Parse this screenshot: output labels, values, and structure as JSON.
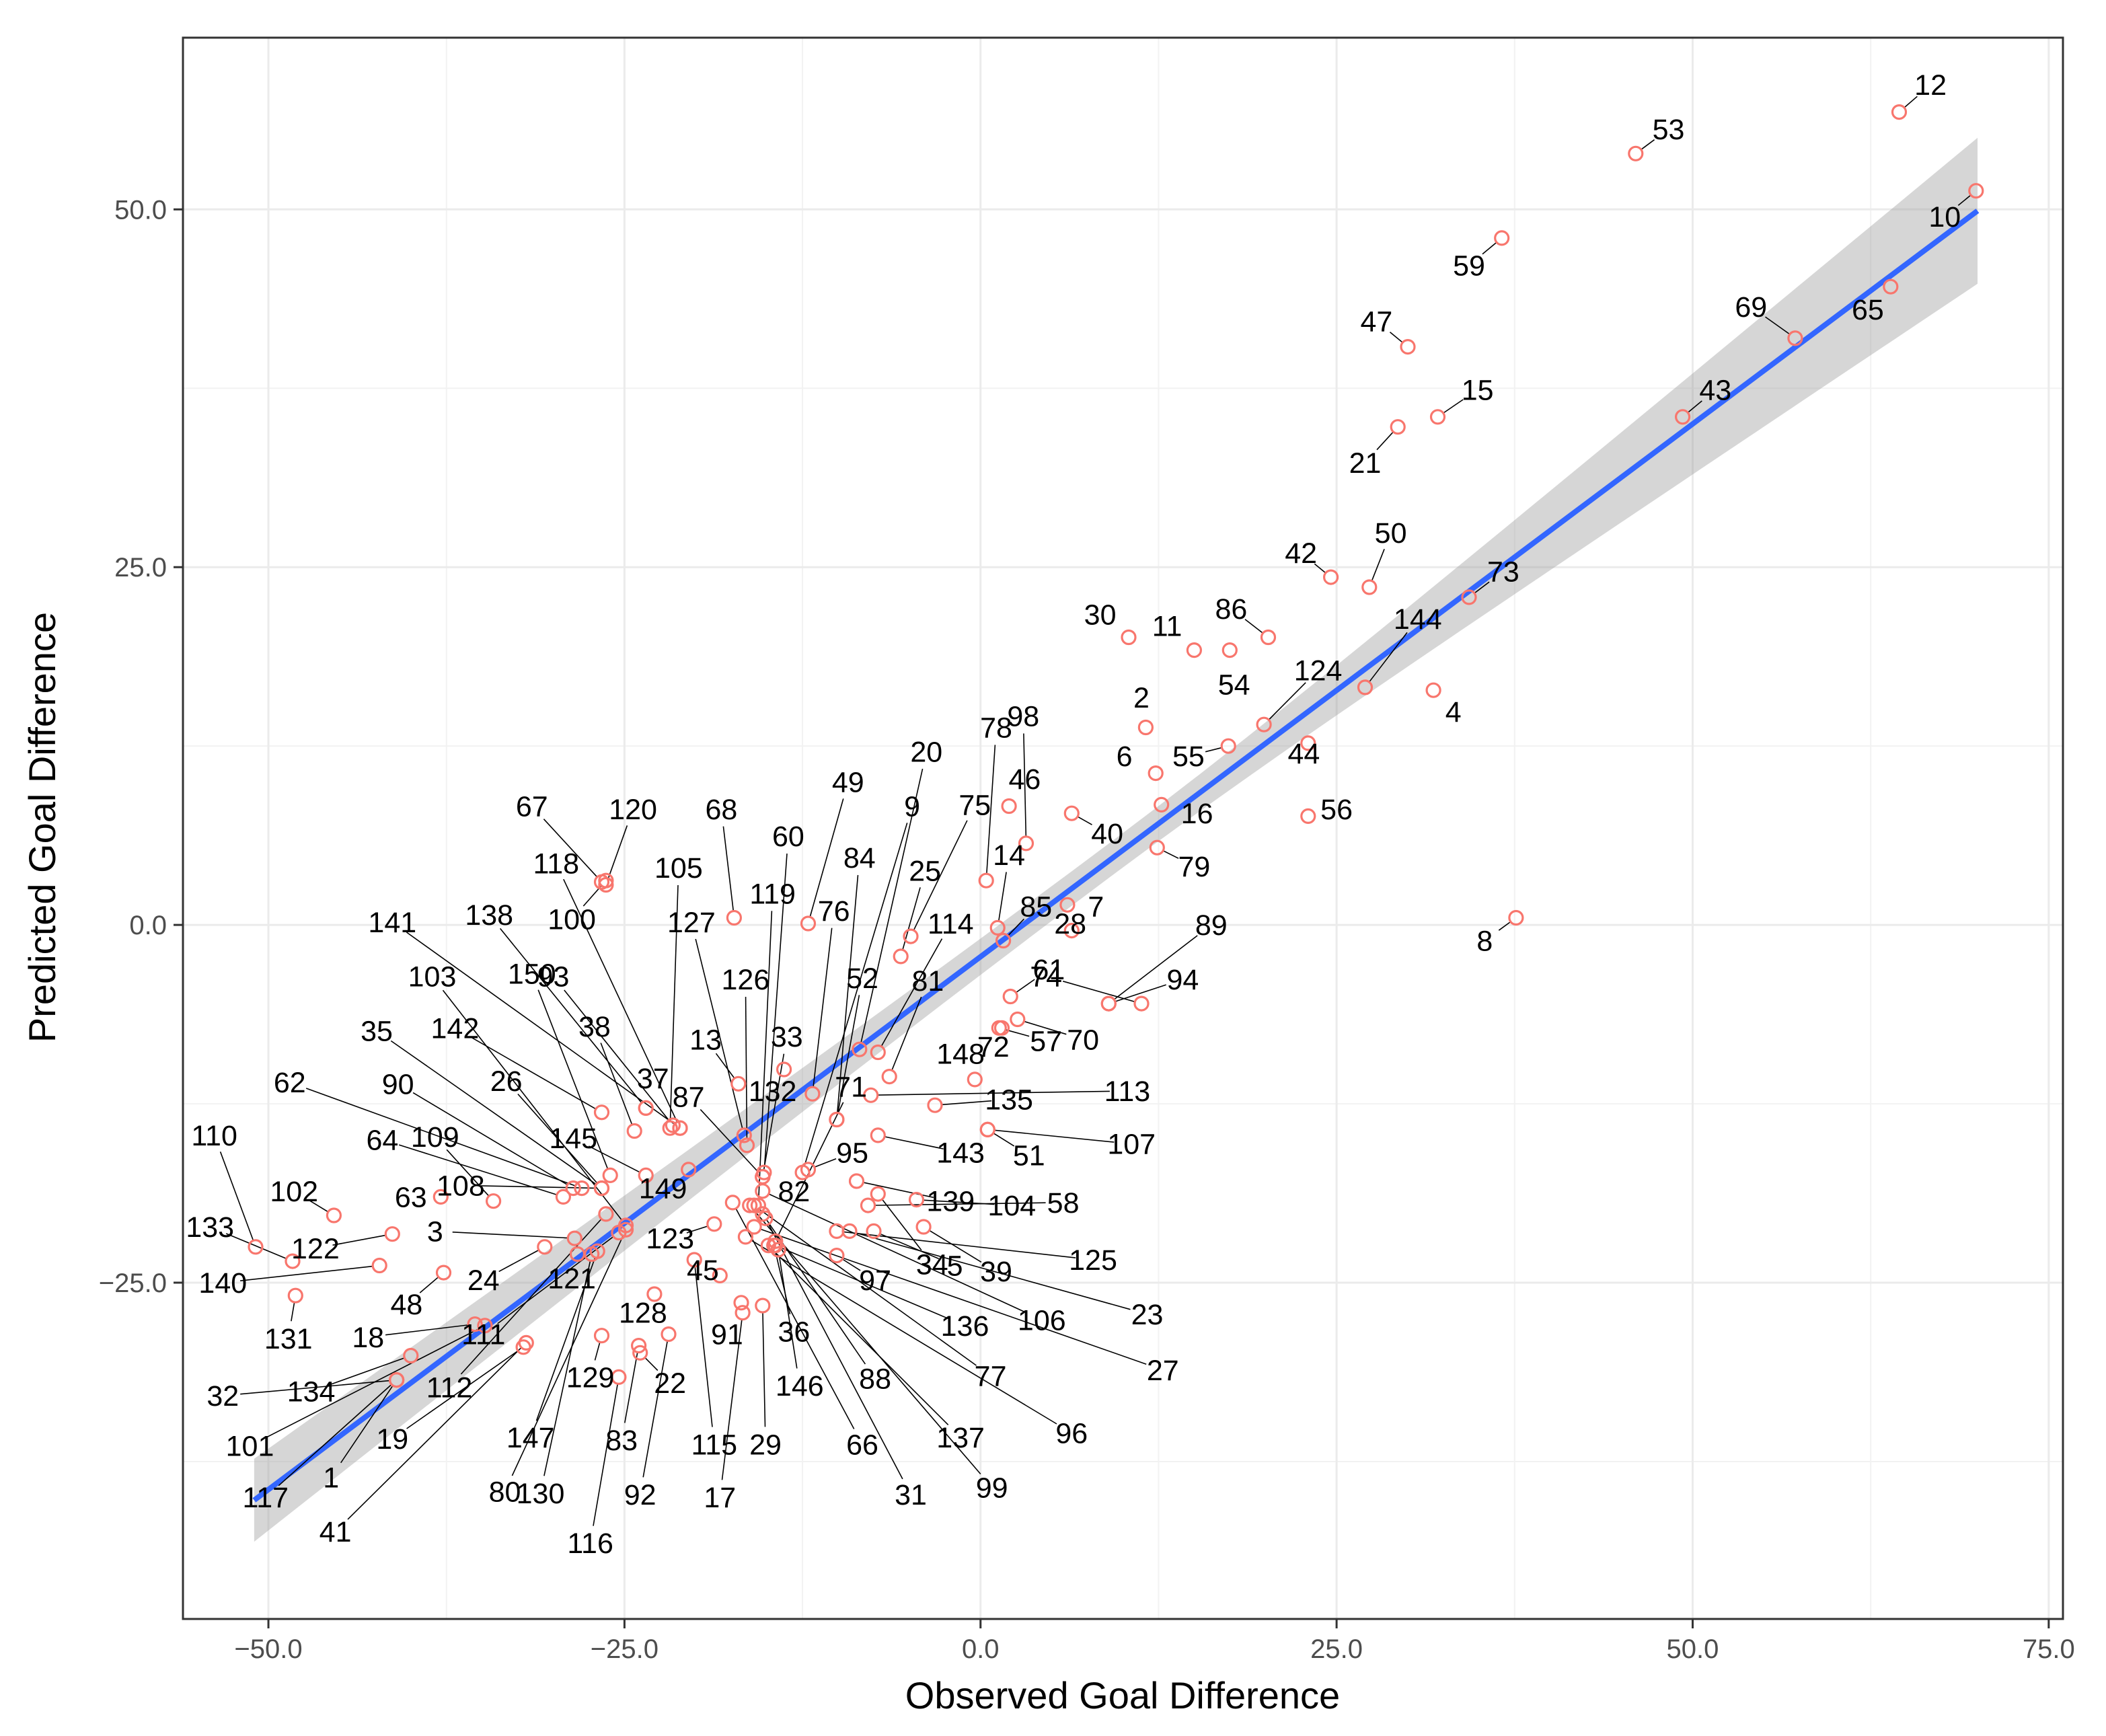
{
  "colors": {
    "panel_border": "#333333",
    "grid_major": "#ebebeb",
    "grid_minor": "#f2f2f2",
    "point": "#f8766d",
    "fit_line": "#3366ff",
    "ribbon": "#999999",
    "leader": "#000000"
  },
  "chart_data": {
    "type": "scatter",
    "xlabel": "Observed Goal Difference",
    "ylabel": "Predicted Goal Difference",
    "xlim": [
      -56,
      76
    ],
    "ylim": [
      -48.5,
      62
    ],
    "xticks": [
      -50,
      -25,
      0,
      25,
      50,
      75
    ],
    "xtick_labels": [
      "−50.0",
      "−25.0",
      "0.0",
      "25.0",
      "50.0",
      "75.0"
    ],
    "yticks": [
      -25,
      0,
      25,
      50
    ],
    "ytick_labels": [
      "−25.0",
      "0.0",
      "25.0",
      "50.0"
    ],
    "grid": true,
    "fit": {
      "method": "linear",
      "x_range": [
        -51,
        70
      ],
      "y_range": [
        -40.2,
        49.9
      ],
      "ci_halfwidth_ends": [
        2.9,
        5.1
      ],
      "ci_halfwidth_center": 1.2
    },
    "points": [
      {
        "id": "1",
        "x": -41,
        "y": -31.8,
        "lx": -45.6,
        "ly": -38.6
      },
      {
        "id": "2",
        "x": 11.6,
        "y": 13.8,
        "lx": 11.3,
        "ly": 15.9
      },
      {
        "id": "3",
        "x": -28.5,
        "y": -21.9,
        "lx": -38.3,
        "ly": -21.4
      },
      {
        "id": "4",
        "x": 31.8,
        "y": 16.4,
        "lx": 33.2,
        "ly": 14.9
      },
      {
        "id": "5",
        "x": -7.5,
        "y": -21.4,
        "lx": -1.8,
        "ly": -23.8
      },
      {
        "id": "6",
        "x": 12.3,
        "y": 10.6,
        "lx": 10.1,
        "ly": 11.8
      },
      {
        "id": "7",
        "x": 6.1,
        "y": 1.4,
        "lx": 8.1,
        "ly": 1.3
      },
      {
        "id": "8",
        "x": 37.6,
        "y": 0.5,
        "lx": 35.4,
        "ly": -1.1
      },
      {
        "id": "9",
        "x": -12.5,
        "y": -17.3,
        "lx": -4.8,
        "ly": 8.3
      },
      {
        "id": "10",
        "x": 69.9,
        "y": 51.3,
        "lx": 67.7,
        "ly": 49.5
      },
      {
        "id": "11",
        "x": 15,
        "y": 19.2,
        "lx": 13.1,
        "ly": 20.9
      },
      {
        "id": "12",
        "x": 64.5,
        "y": 56.8,
        "lx": 66.7,
        "ly": 58.7
      },
      {
        "id": "13",
        "x": -17,
        "y": -11.1,
        "lx": -19.3,
        "ly": -8.0
      },
      {
        "id": "14",
        "x": 1.2,
        "y": -0.2,
        "lx": 2.0,
        "ly": 4.9
      },
      {
        "id": "15",
        "x": 32.1,
        "y": 35.5,
        "lx": 34.9,
        "ly": 37.4
      },
      {
        "id": "16",
        "x": 12.7,
        "y": 8.4,
        "lx": 15.2,
        "ly": 7.8
      },
      {
        "id": "17",
        "x": -16.7,
        "y": -27.1,
        "lx": -18.3,
        "ly": -40.0
      },
      {
        "id": "18",
        "x": -35.5,
        "y": -27.9,
        "lx": -43.0,
        "ly": -28.8
      },
      {
        "id": "19",
        "x": -32.1,
        "y": -29.5,
        "lx": -41.3,
        "ly": -35.9
      },
      {
        "id": "20",
        "x": -8.5,
        "y": -8.7,
        "lx": -3.8,
        "ly": 12.1
      },
      {
        "id": "21",
        "x": 29.3,
        "y": 34.8,
        "lx": 27.0,
        "ly": 32.3
      },
      {
        "id": "22",
        "x": -23.9,
        "y": -29.9,
        "lx": -21.8,
        "ly": -32.0
      },
      {
        "id": "23",
        "x": -9.2,
        "y": -21.4,
        "lx": 11.7,
        "ly": -27.2
      },
      {
        "id": "24",
        "x": -30.6,
        "y": -22.5,
        "lx": -34.9,
        "ly": -24.8
      },
      {
        "id": "25",
        "x": -5.6,
        "y": -2.2,
        "lx": -3.9,
        "ly": 3.8
      },
      {
        "id": "26",
        "x": -26.6,
        "y": -18.4,
        "lx": -33.3,
        "ly": -10.9
      },
      {
        "id": "27",
        "x": -15.9,
        "y": -21.1,
        "lx": 12.8,
        "ly": -31.1
      },
      {
        "id": "28",
        "x": 6.4,
        "y": -0.4,
        "lx": 6.3,
        "ly": 0.1
      },
      {
        "id": "29",
        "x": -15.3,
        "y": -26.6,
        "lx": -15.1,
        "ly": -36.3
      },
      {
        "id": "30",
        "x": 10.4,
        "y": 20.1,
        "lx": 8.4,
        "ly": 21.7
      },
      {
        "id": "31",
        "x": -15.1,
        "y": -20.5,
        "lx": -4.9,
        "ly": -39.8
      },
      {
        "id": "32",
        "x": -41,
        "y": -31.8,
        "lx": -53.2,
        "ly": -32.9
      },
      {
        "id": "33",
        "x": -15.3,
        "y": -17.6,
        "lx": -13.6,
        "ly": -7.8
      },
      {
        "id": "34",
        "x": -7.2,
        "y": -18.8,
        "lx": -3.4,
        "ly": -23.7
      },
      {
        "id": "35",
        "x": -26.6,
        "y": -18.4,
        "lx": -42.4,
        "ly": -7.4
      },
      {
        "id": "36",
        "x": -14.5,
        "y": -22.4,
        "lx": -13.1,
        "ly": -28.4
      },
      {
        "id": "37",
        "x": -23.5,
        "y": -12.8,
        "lx": -23.0,
        "ly": -10.7
      },
      {
        "id": "38",
        "x": -24.3,
        "y": -14.4,
        "lx": -27.1,
        "ly": -7.1
      },
      {
        "id": "39",
        "x": -4,
        "y": -21.1,
        "lx": 1.1,
        "ly": -24.2
      },
      {
        "id": "40",
        "x": 6.4,
        "y": 7.8,
        "lx": 8.9,
        "ly": 6.4
      },
      {
        "id": "41",
        "x": -31.9,
        "y": -29.2,
        "lx": -45.3,
        "ly": -42.4
      },
      {
        "id": "42",
        "x": 24.6,
        "y": 24.3,
        "lx": 22.5,
        "ly": 26.0
      },
      {
        "id": "43",
        "x": 49.3,
        "y": 35.5,
        "lx": 51.6,
        "ly": 37.4
      },
      {
        "id": "44",
        "x": 23.0,
        "y": 12.7,
        "lx": 22.7,
        "ly": 12.0
      },
      {
        "id": "45",
        "x": -18.3,
        "y": -24.5,
        "lx": -19.5,
        "ly": -24.1
      },
      {
        "id": "46",
        "x": 2.0,
        "y": 8.3,
        "lx": 3.1,
        "ly": 10.2
      },
      {
        "id": "47",
        "x": 30.0,
        "y": 40.4,
        "lx": 27.8,
        "ly": 42.2
      },
      {
        "id": "48",
        "x": -37.7,
        "y": -24.3,
        "lx": -40.3,
        "ly": -26.5
      },
      {
        "id": "49",
        "x": -12.1,
        "y": 0.1,
        "lx": -9.3,
        "ly": 10.0
      },
      {
        "id": "50",
        "x": 27.3,
        "y": 23.6,
        "lx": 28.8,
        "ly": 27.4
      },
      {
        "id": "51",
        "x": 0.5,
        "y": -14.3,
        "lx": 3.4,
        "ly": -16.1
      },
      {
        "id": "52",
        "x": -10.1,
        "y": -13.6,
        "lx": -8.3,
        "ly": -3.7
      },
      {
        "id": "53",
        "x": 46,
        "y": 53.9,
        "lx": 48.3,
        "ly": 55.6
      },
      {
        "id": "54",
        "x": 17.5,
        "y": 19.2,
        "lx": 17.8,
        "ly": 16.8
      },
      {
        "id": "55",
        "x": 17.4,
        "y": 12.5,
        "lx": 14.6,
        "ly": 11.8
      },
      {
        "id": "56",
        "x": 23.0,
        "y": 7.6,
        "lx": 25.0,
        "ly": 8.1
      },
      {
        "id": "57",
        "x": 1.3,
        "y": -7.2,
        "lx": 4.6,
        "ly": -8.1
      },
      {
        "id": "58",
        "x": -7.9,
        "y": -19.6,
        "lx": 5.8,
        "ly": -19.4
      },
      {
        "id": "59",
        "x": 36.6,
        "y": 48.0,
        "lx": 34.3,
        "ly": 46.1
      },
      {
        "id": "60",
        "x": -15.2,
        "y": -17.3,
        "lx": -13.5,
        "ly": 6.2
      },
      {
        "id": "61",
        "x": 2.1,
        "y": -5.0,
        "lx": 4.8,
        "ly": -3.1
      },
      {
        "id": "62",
        "x": -28.0,
        "y": -18.4,
        "lx": -48.5,
        "ly": -11.0
      },
      {
        "id": "63",
        "x": -37.9,
        "y": -19.0,
        "lx": -40.0,
        "ly": -19.0
      },
      {
        "id": "64",
        "x": -29.3,
        "y": -19.0,
        "lx": -42.0,
        "ly": -15.0
      },
      {
        "id": "65",
        "x": 63.9,
        "y": 44.6,
        "lx": 62.3,
        "ly": 43.0
      },
      {
        "id": "66",
        "x": -17.4,
        "y": -19.4,
        "lx": -8.3,
        "ly": -36.3
      },
      {
        "id": "67",
        "x": -26.6,
        "y": 3.0,
        "lx": -31.5,
        "ly": 8.3
      },
      {
        "id": "68",
        "x": -17.3,
        "y": 0.5,
        "lx": -18.2,
        "ly": 8.1
      },
      {
        "id": "69",
        "x": 57.2,
        "y": 41.0,
        "lx": 54.1,
        "ly": 43.2
      },
      {
        "id": "70",
        "x": 2.6,
        "y": -6.6,
        "lx": 7.2,
        "ly": -8.0
      },
      {
        "id": "71",
        "x": -14.4,
        "y": -22.1,
        "lx": -9.1,
        "ly": -11.3
      },
      {
        "id": "72",
        "x": 1.5,
        "y": -7.2,
        "lx": 0.9,
        "ly": -8.5
      },
      {
        "id": "73",
        "x": 34.3,
        "y": 22.9,
        "lx": 36.7,
        "ly": 24.7
      },
      {
        "id": "74",
        "x": 11.3,
        "y": -5.5,
        "lx": 4.6,
        "ly": -3.6
      },
      {
        "id": "75",
        "x": -4.9,
        "y": -0.8,
        "lx": -0.4,
        "ly": 8.4
      },
      {
        "id": "76",
        "x": -11.8,
        "y": -11.8,
        "lx": -10.3,
        "ly": 1.0
      },
      {
        "id": "77",
        "x": -15.9,
        "y": -19.6,
        "lx": 0.7,
        "ly": -31.5
      },
      {
        "id": "78",
        "x": 0.4,
        "y": 3.1,
        "lx": 1.1,
        "ly": 13.8
      },
      {
        "id": "79",
        "x": 12.4,
        "y": 5.4,
        "lx": 15.0,
        "ly": 4.1
      },
      {
        "id": "80",
        "x": -24.9,
        "y": -21.3,
        "lx": -33.4,
        "ly": -39.6
      },
      {
        "id": "81",
        "x": -6.4,
        "y": -10.6,
        "lx": -3.7,
        "ly": -3.9
      },
      {
        "id": "82",
        "x": -15.3,
        "y": -17.6,
        "lx": -13.1,
        "ly": -18.6
      },
      {
        "id": "83",
        "x": -24.0,
        "y": -29.4,
        "lx": -25.2,
        "ly": -36.0
      },
      {
        "id": "84",
        "x": -10.1,
        "y": -13.6,
        "lx": -8.5,
        "ly": 4.7
      },
      {
        "id": "85",
        "x": 1.6,
        "y": -1.1,
        "lx": 3.9,
        "ly": 1.3
      },
      {
        "id": "86",
        "x": 20.2,
        "y": 20.1,
        "lx": 17.6,
        "ly": 22.1
      },
      {
        "id": "87",
        "x": -15.3,
        "y": -17.6,
        "lx": -20.5,
        "ly": -12.0
      },
      {
        "id": "88",
        "x": -15.3,
        "y": -20.2,
        "lx": -7.4,
        "ly": -31.7
      },
      {
        "id": "89",
        "x": 9.0,
        "y": -5.5,
        "lx": 16.2,
        "ly": 0.0
      },
      {
        "id": "90",
        "x": -28.6,
        "y": -18.4,
        "lx": -40.9,
        "ly": -11.1
      },
      {
        "id": "91",
        "x": -16.8,
        "y": -26.4,
        "lx": -17.8,
        "ly": -28.6
      },
      {
        "id": "92",
        "x": -21.9,
        "y": -28.6,
        "lx": -23.9,
        "ly": -39.8
      },
      {
        "id": "93",
        "x": -21.6,
        "y": -14.0,
        "lx": -30.0,
        "ly": -3.6
      },
      {
        "id": "94",
        "x": 9.0,
        "y": -5.5,
        "lx": 14.2,
        "ly": -3.8
      },
      {
        "id": "95",
        "x": -12.1,
        "y": -17.1,
        "lx": -9.0,
        "ly": -15.9
      },
      {
        "id": "96",
        "x": -16.5,
        "y": -21.8,
        "lx": 6.4,
        "ly": -35.5
      },
      {
        "id": "97",
        "x": -10.1,
        "y": -23.1,
        "lx": -7.4,
        "ly": -24.8
      },
      {
        "id": "98",
        "x": 3.2,
        "y": 5.7,
        "lx": 3.0,
        "ly": 14.6
      },
      {
        "id": "99",
        "x": -16.2,
        "y": -19.6,
        "lx": 0.8,
        "ly": -39.3
      },
      {
        "id": "100",
        "x": -26.3,
        "y": 3.1,
        "lx": -28.7,
        "ly": 0.4
      },
      {
        "id": "101",
        "x": -34.8,
        "y": -28.0,
        "lx": -51.3,
        "ly": -36.4
      },
      {
        "id": "102",
        "x": -45.4,
        "y": -20.3,
        "lx": -48.2,
        "ly": -18.6
      },
      {
        "id": "103",
        "x": -24.9,
        "y": -21.0,
        "lx": -38.5,
        "ly": -3.6
      },
      {
        "id": "104",
        "x": -4.5,
        "y": -19.2,
        "lx": 2.2,
        "ly": -19.6
      },
      {
        "id": "105",
        "x": -21.8,
        "y": -14.2,
        "lx": -21.2,
        "ly": 4.0
      },
      {
        "id": "106",
        "x": -15.3,
        "y": -18.6,
        "lx": 4.3,
        "ly": -27.6
      },
      {
        "id": "107",
        "x": 0.5,
        "y": -14.3,
        "lx": 10.6,
        "ly": -15.3
      },
      {
        "id": "108",
        "x": -26.6,
        "y": -18.4,
        "lx": -36.5,
        "ly": -18.2
      },
      {
        "id": "109",
        "x": -34.2,
        "y": -19.3,
        "lx": -38.3,
        "ly": -14.8
      },
      {
        "id": "110",
        "x": -50.9,
        "y": -22.5,
        "lx": -53.8,
        "ly": -14.7
      },
      {
        "id": "111",
        "x": -25.4,
        "y": -21.5,
        "lx": -34.9,
        "ly": -28.6
      },
      {
        "id": "112",
        "x": -26.3,
        "y": -20.2,
        "lx": -37.3,
        "ly": -32.3
      },
      {
        "id": "113",
        "x": -7.7,
        "y": -11.9,
        "lx": 10.3,
        "ly": -11.6
      },
      {
        "id": "114",
        "x": -7.2,
        "y": -8.9,
        "lx": -2.1,
        "ly": 0.1
      },
      {
        "id": "115",
        "x": -20.1,
        "y": -23.4,
        "lx": -18.7,
        "ly": -36.3
      },
      {
        "id": "116",
        "x": -25.4,
        "y": -31.6,
        "lx": -27.4,
        "ly": -43.2
      },
      {
        "id": "117",
        "x": -41.0,
        "y": -31.8,
        "lx": -50.2,
        "ly": -40.0
      },
      {
        "id": "118",
        "x": -21.1,
        "y": -14.2,
        "lx": -29.8,
        "ly": 4.3
      },
      {
        "id": "119",
        "x": -15.6,
        "y": -19.6,
        "lx": -14.6,
        "ly": 2.2
      },
      {
        "id": "120",
        "x": -26.3,
        "y": 2.8,
        "lx": -24.4,
        "ly": 8.1
      },
      {
        "id": "121",
        "x": -28.3,
        "y": -23.0,
        "lx": -28.7,
        "ly": -24.7
      },
      {
        "id": "122",
        "x": -41.3,
        "y": -21.6,
        "lx": -46.7,
        "ly": -22.6
      },
      {
        "id": "123",
        "x": -18.7,
        "y": -20.9,
        "lx": -21.8,
        "ly": -21.9
      },
      {
        "id": "124",
        "x": 19.9,
        "y": 14.0,
        "lx": 23.7,
        "ly": 17.8
      },
      {
        "id": "125",
        "x": -10.1,
        "y": -21.4,
        "lx": 7.9,
        "ly": -23.4
      },
      {
        "id": "126",
        "x": -16.4,
        "y": -15.4,
        "lx": -16.5,
        "ly": -3.8
      },
      {
        "id": "127",
        "x": -16.6,
        "y": -14.7,
        "lx": -20.3,
        "ly": 0.2
      },
      {
        "id": "128",
        "x": -22.9,
        "y": -25.8,
        "lx": -23.7,
        "ly": -27.1
      },
      {
        "id": "129",
        "x": -26.6,
        "y": -28.7,
        "lx": -27.4,
        "ly": -31.6
      },
      {
        "id": "130",
        "x": -27.3,
        "y": -23.0,
        "lx": -30.9,
        "ly": -39.7
      },
      {
        "id": "131",
        "x": -48.1,
        "y": -25.9,
        "lx": -48.6,
        "ly": -28.9
      },
      {
        "id": "132",
        "x": -13.8,
        "y": -10.1,
        "lx": -14.6,
        "ly": -11.6
      },
      {
        "id": "133",
        "x": -48.3,
        "y": -23.5,
        "lx": -54.1,
        "ly": -21.1
      },
      {
        "id": "134",
        "x": -40.0,
        "y": -30.1,
        "lx": -47.0,
        "ly": -32.6
      },
      {
        "id": "135",
        "x": -3.2,
        "y": -12.6,
        "lx": 2.0,
        "ly": -12.2
      },
      {
        "id": "136",
        "x": -14.4,
        "y": -22.4,
        "lx": -1.1,
        "ly": -28.0
      },
      {
        "id": "137",
        "x": -14.9,
        "y": -22.4,
        "lx": -1.4,
        "ly": -35.8
      },
      {
        "id": "138",
        "x": -23.5,
        "y": -12.8,
        "lx": -34.5,
        "ly": 0.7
      },
      {
        "id": "139",
        "x": -8.7,
        "y": -17.9,
        "lx": -2.1,
        "ly": -19.3
      },
      {
        "id": "140",
        "x": -42.2,
        "y": -23.8,
        "lx": -53.2,
        "ly": -25.0
      },
      {
        "id": "141",
        "x": -21.1,
        "y": -14.2,
        "lx": -41.3,
        "ly": 0.2
      },
      {
        "id": "142",
        "x": -26.6,
        "y": -13.1,
        "lx": -36.9,
        "ly": -7.2
      },
      {
        "id": "143",
        "x": -7.2,
        "y": -14.7,
        "lx": -1.4,
        "ly": -15.9
      },
      {
        "id": "144",
        "x": 27.0,
        "y": 16.6,
        "lx": 30.7,
        "ly": 21.4
      },
      {
        "id": "145",
        "x": -23.5,
        "y": -17.5,
        "lx": -28.6,
        "ly": -14.9
      },
      {
        "id": "146",
        "x": -14.2,
        "y": -22.7,
        "lx": -12.7,
        "ly": -32.2
      },
      {
        "id": "147",
        "x": -26.9,
        "y": -22.8,
        "lx": -31.6,
        "ly": -35.8
      },
      {
        "id": "148",
        "x": -0.4,
        "y": -10.8,
        "lx": -1.4,
        "ly": -9.0
      },
      {
        "id": "149",
        "x": -20.5,
        "y": -17.1,
        "lx": -22.3,
        "ly": -18.4
      },
      {
        "id": "150",
        "x": -26.0,
        "y": -17.5,
        "lx": -31.5,
        "ly": -3.4
      }
    ]
  }
}
